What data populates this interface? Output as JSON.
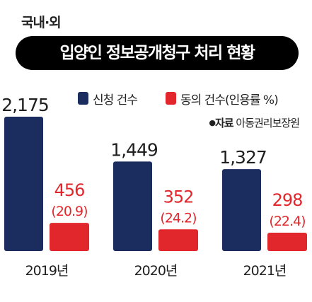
{
  "header": {
    "section_label": "국내·외",
    "title": "입양인 정보공개청구 처리 현황"
  },
  "legend": {
    "items": [
      {
        "label": "신청 건수",
        "color": "#1a2d5e"
      },
      {
        "label": "동의 건수(인용률 %)",
        "color": "#e2272c"
      }
    ]
  },
  "source": {
    "bullet": "●",
    "label": "자료",
    "text": "아동권리보장원"
  },
  "colors": {
    "applications": "#1a2d5e",
    "consents": "#e2272c",
    "text": "#1f1f1f"
  },
  "chart_data": {
    "type": "bar",
    "title": "입양인 정보공개청구 처리 현황",
    "categories": [
      "2019년",
      "2020년",
      "2021년"
    ],
    "series": [
      {
        "name": "신청 건수",
        "values": [
          2175,
          1449,
          1327
        ],
        "labels": [
          "2,175",
          "1,449",
          "1,327"
        ]
      },
      {
        "name": "동의 건수(인용률 %)",
        "values": [
          456,
          352,
          298
        ],
        "labels": [
          "456",
          "352",
          "298"
        ],
        "rates": [
          "(20.9)",
          "(24.2)",
          "(22.4)"
        ]
      }
    ],
    "xlabel": "",
    "ylabel": "",
    "grid": false,
    "legend_position": "top-right"
  }
}
